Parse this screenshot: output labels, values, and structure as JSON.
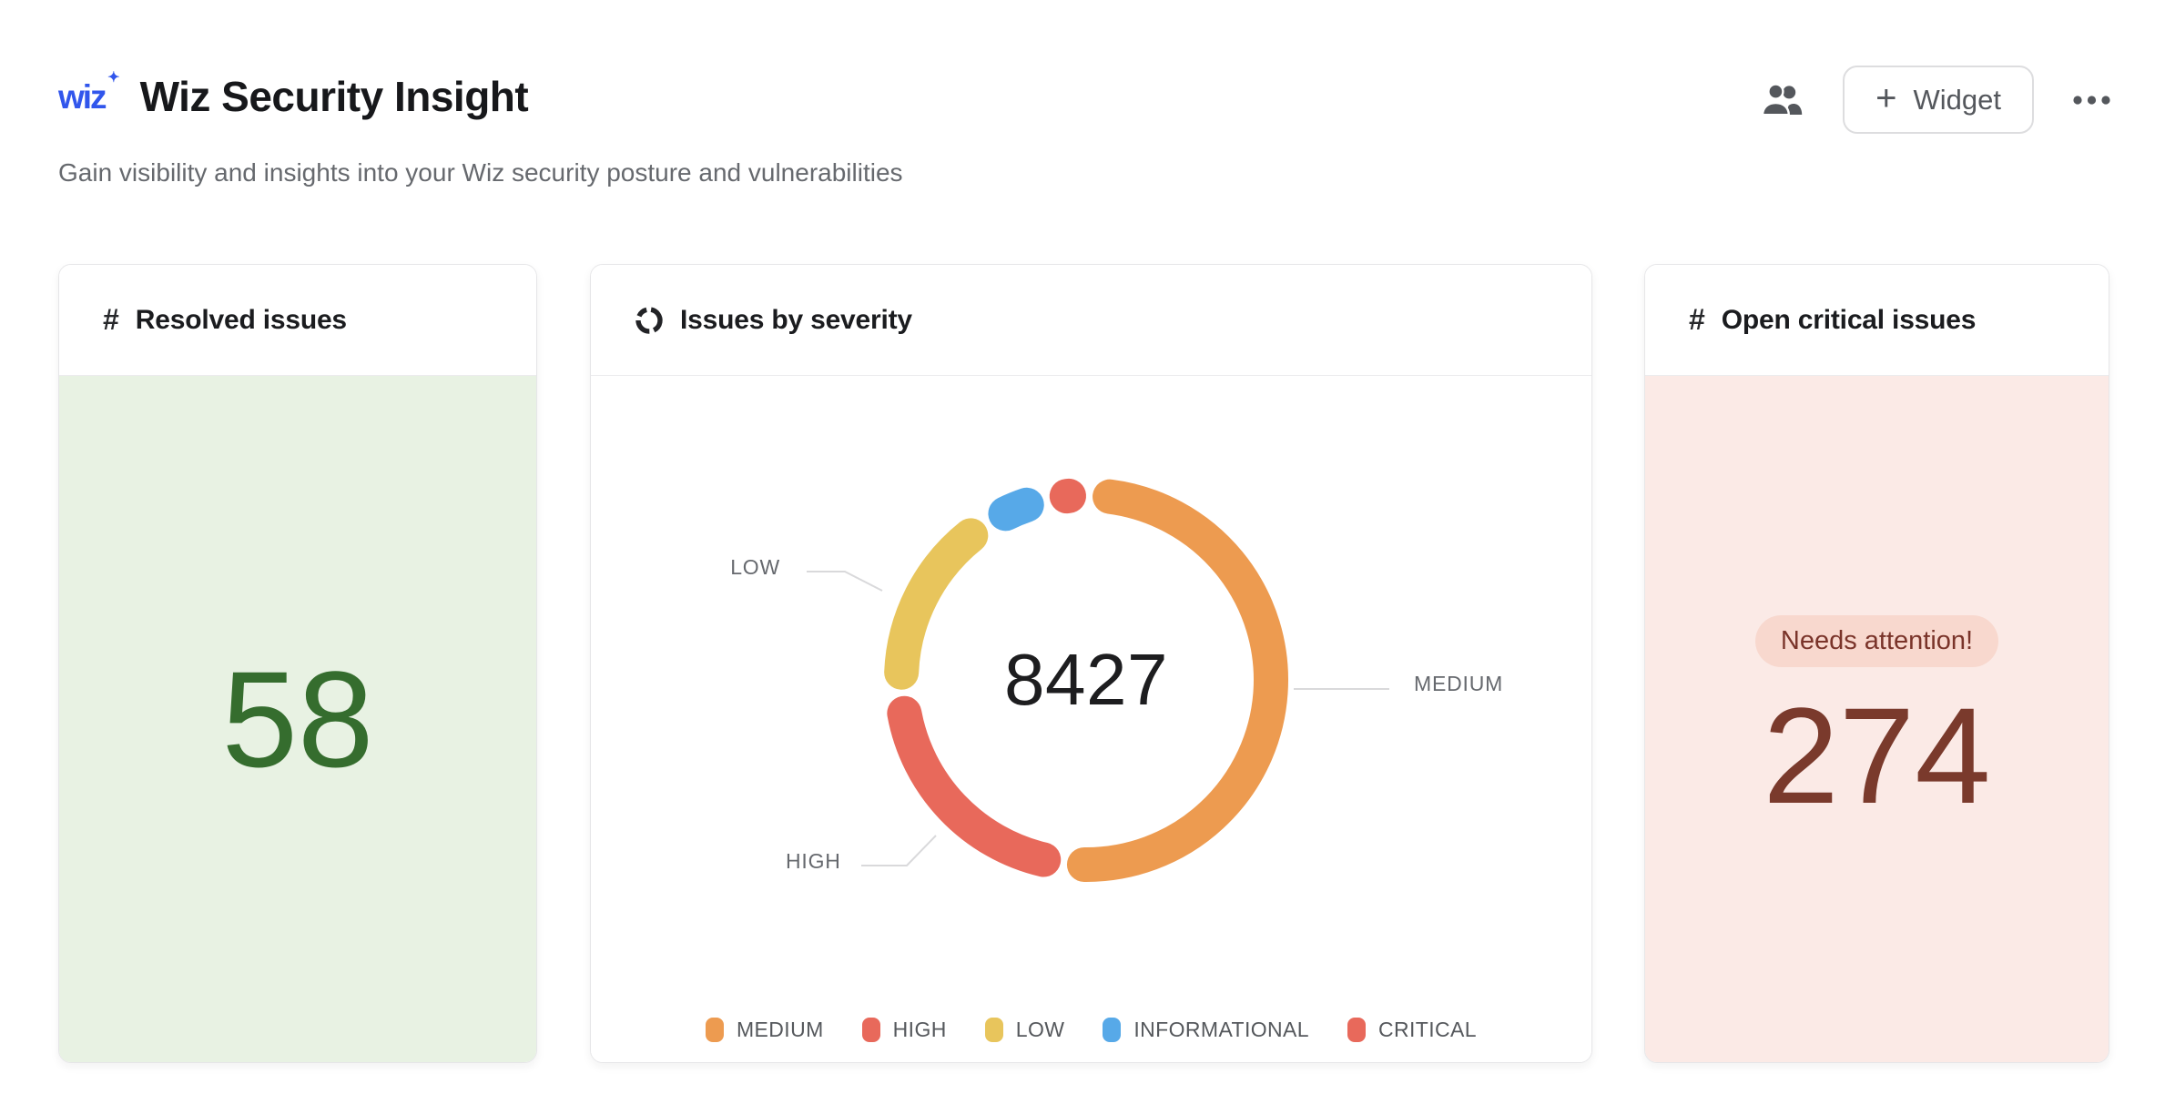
{
  "header": {
    "logo_text": "wiz",
    "logo_sparkle": "✦",
    "title": "Wiz Security Insight",
    "subtitle": "Gain visibility and insights into your Wiz security posture and vulnerabilities",
    "actions": {
      "plus_glyph": "+",
      "widget_button_label": "Widget"
    }
  },
  "cards": {
    "resolved": {
      "icon_glyph": "#",
      "title": "Resolved issues",
      "value": "58",
      "value_color": "#356D2E",
      "background": "#E8F2E3"
    },
    "severity": {
      "title": "Issues by severity"
    },
    "critical": {
      "icon_glyph": "#",
      "title": "Open critical issues",
      "badge": "Needs attention!",
      "value": "274",
      "value_color": "#7A3A2C",
      "badge_background": "#F8D8CE",
      "background": "#FBEAE6"
    }
  },
  "chart_data": {
    "type": "donut",
    "title": "Issues by severity",
    "center_total": "8427",
    "legend_position": "bottom",
    "segments": [
      {
        "label": "MEDIUM",
        "value": 4429,
        "color": "#ED9B50"
      },
      {
        "label": "HIGH",
        "value": 1854,
        "color": "#E8695B"
      },
      {
        "label": "LOW",
        "value": 1440,
        "color": "#E8C55C"
      },
      {
        "label": "INFORMATIONAL",
        "value": 430,
        "color": "#57A9E8"
      },
      {
        "label": "CRITICAL",
        "value": 274,
        "color": "#E8695B"
      }
    ],
    "callouts": [
      "LOW",
      "HIGH",
      "MEDIUM"
    ]
  }
}
